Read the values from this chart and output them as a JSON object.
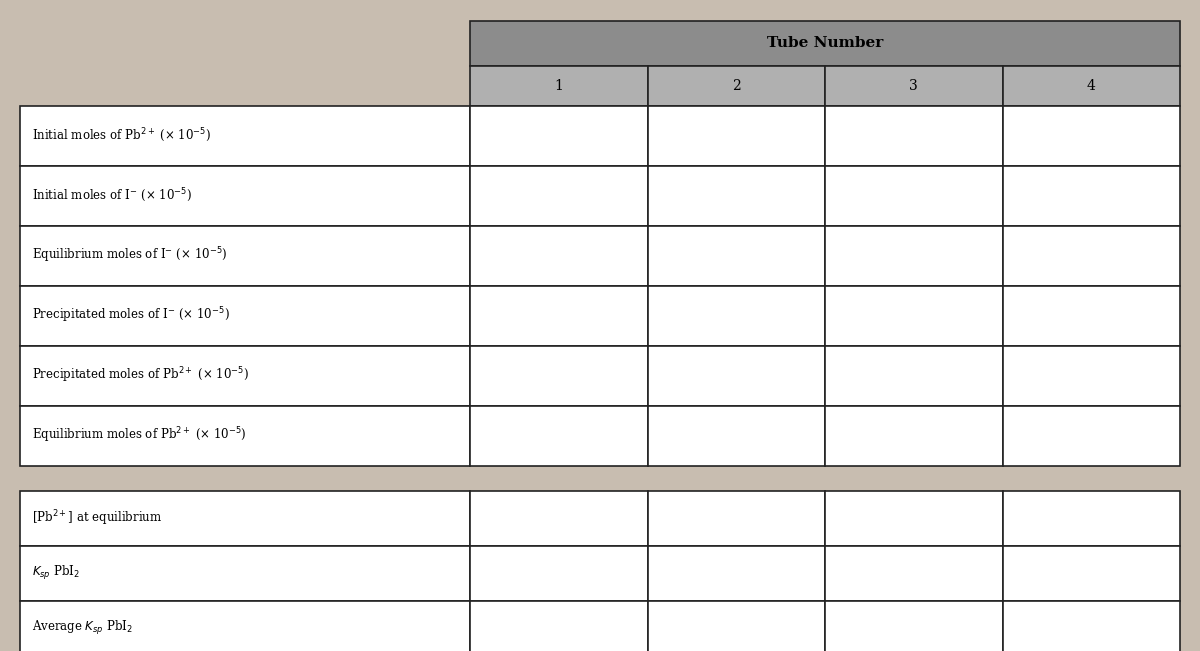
{
  "title": "Tube Number",
  "col_headers": [
    "1",
    "2",
    "3",
    "4"
  ],
  "row_labels_1": [
    "Initial moles of Pb$^{2+}$ (× 10$^{-5}$)",
    "Initial moles of I$^{-}$ (× 10$^{-5}$)",
    "Equilibrium moles of I$^{-}$ (× 10$^{-5}$)",
    "Precipitated moles of I$^{-}$ (× 10$^{-5}$)",
    "Precipitated moles of Pb$^{2+}$ (× 10$^{-5}$)",
    "Equilibrium moles of Pb$^{2+}$ (× 10$^{-5}$)"
  ],
  "row_labels_2": [
    "[Pb$^{2+}$] at equilibrium",
    "$K_{sp}$ PbI$_2$",
    "Average $K_{sp}$ PbI$_2$"
  ],
  "bg_color": "#c8bdb0",
  "header_bg": "#8c8c8c",
  "subheader_bg": "#b0b0b0",
  "cell_bg": "#ffffff",
  "border_color": "#222222",
  "figsize": [
    12.0,
    6.51
  ],
  "dpi": 100
}
